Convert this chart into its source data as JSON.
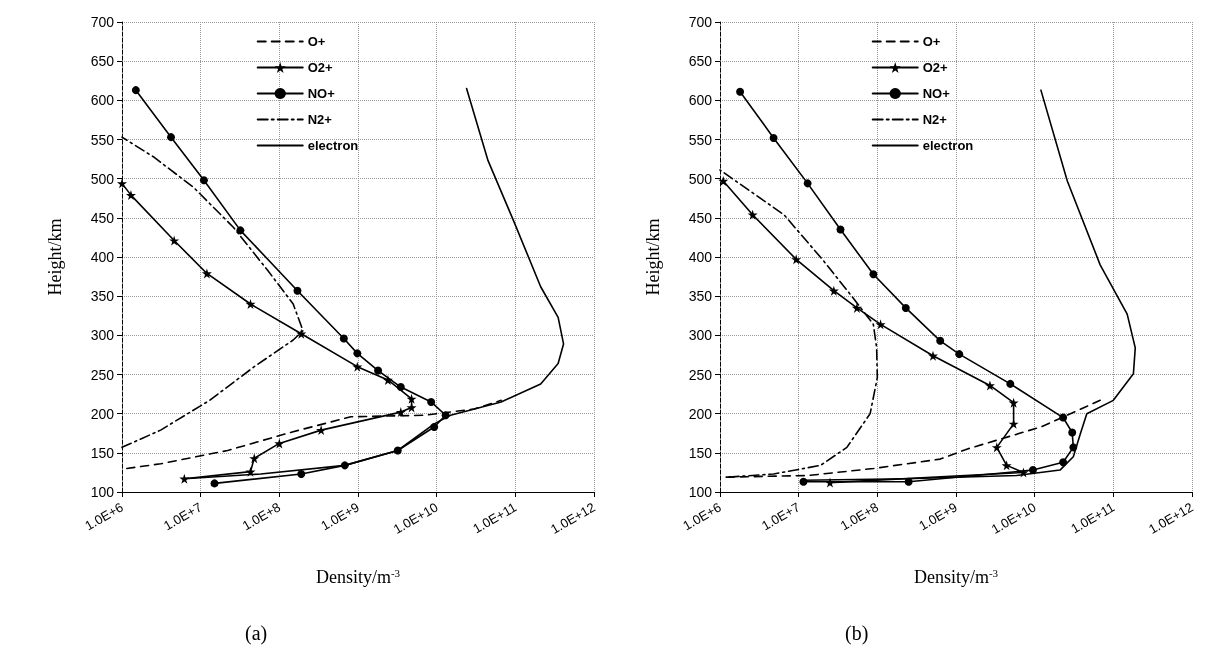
{
  "chart_data": [
    {
      "type": "line",
      "title": "(a)",
      "xlabel": "Density/m$^{-3}$",
      "ylabel": "Height/km",
      "log": "x",
      "grid": true,
      "legend": "top",
      "xlim": [
        1000000,
        1000000000000
      ],
      "xticks": [
        {
          "value": 1000000,
          "label": "1.0E+6"
        },
        {
          "value": 10000000,
          "label": "1.0E+7"
        },
        {
          "value": 100000000,
          "label": "1.0E+8"
        },
        {
          "value": 1000000000,
          "label": "1.0E+9"
        },
        {
          "value": 10000000000,
          "label": "1.0E+10"
        },
        {
          "value": 100000000000,
          "label": "1.0E+11"
        },
        {
          "value": 1000000000000,
          "label": "1.0E+12"
        }
      ],
      "ylim": [
        100,
        700
      ],
      "yticks": [
        100,
        150,
        200,
        250,
        300,
        350,
        400,
        450,
        500,
        550,
        600,
        650,
        700
      ],
      "series": [
        {
          "name": "O+",
          "color": "#000000",
          "line_style": "dashed",
          "marker": "none",
          "x": [
            1150000.0,
            3100000.0,
            22000000.0,
            150000000.0,
            810000000.0,
            7100000000.0,
            30000000000.0,
            66000000000.0
          ],
          "values": [
            130,
            136,
            153,
            177,
            196,
            198,
            206,
            217
          ]
        },
        {
          "name": "O2+",
          "color": "#000000",
          "line_style": "solid",
          "marker": "star",
          "x": [
            1000000.0,
            1300000.0,
            4600000.0,
            12000000.0,
            43000000.0,
            190000000.0,
            980000000.0,
            2400000000.0,
            4800000000.0,
            4800000000.0,
            3500000000.0,
            340000000.0,
            100000000.0,
            48000000.0,
            43000000.0,
            6200000.0
          ],
          "values": [
            494,
            479,
            421,
            379,
            340,
            302,
            260,
            243,
            219,
            208,
            202,
            179,
            162,
            143,
            126,
            117
          ]
        },
        {
          "name": "NO+",
          "color": "#000000",
          "line_style": "solid",
          "marker": "circle",
          "x": [
            1500000.0,
            4200000.0,
            11000000.0,
            32000000.0,
            170000000.0,
            660000000.0,
            980000000.0,
            1800000000.0,
            3500000000.0,
            8500000000.0,
            13000000000.0,
            9300000000.0,
            3200000000.0,
            680000000.0,
            190000000.0,
            15000000.0
          ],
          "values": [
            613,
            553,
            498,
            434,
            357,
            296,
            277,
            255,
            234,
            215,
            198,
            183,
            153,
            134,
            123,
            111
          ]
        },
        {
          "name": "N2+",
          "color": "#000000",
          "line_style": "dashdot",
          "marker": "none",
          "x": [
            1000000.0,
            3100000.0,
            13000000.0,
            48000000.0,
            150000000.0,
            200000000.0,
            150000000.0,
            71000000.0,
            26000000.0,
            8100000.0,
            2500000.0,
            1000000.0
          ],
          "values": [
            157,
            179,
            217,
            260,
            294,
            306,
            340,
            383,
            438,
            489,
            528,
            553
          ]
        },
        {
          "name": "electron",
          "color": "#000000",
          "line_style": "solid",
          "marker": "none",
          "x": [
            24000000000.0,
            45000000000.0,
            98000000000.0,
            210000000000.0,
            350000000000.0,
            410000000000.0,
            350000000000.0,
            210000000000.0,
            66000000000.0,
            15000000000.0,
            9300000000.0,
            3200000000.0,
            680000000.0,
            58000000.0,
            6200000.0
          ],
          "values": [
            615,
            523,
            443,
            362,
            323,
            289,
            264,
            238,
            215,
            198,
            187,
            153,
            134,
            123,
            117
          ]
        }
      ]
    },
    {
      "type": "line",
      "title": "(b)",
      "xlabel": "Density/m$^{-3}$",
      "ylabel": "Height/km",
      "log": "x",
      "grid": true,
      "legend": "top",
      "xlim": [
        1000000,
        1000000000000
      ],
      "xticks": [
        {
          "value": 1000000,
          "label": "1.0E+6"
        },
        {
          "value": 10000000,
          "label": "1.0E+7"
        },
        {
          "value": 100000000,
          "label": "1.0E+8"
        },
        {
          "value": 1000000000,
          "label": "1.0E+9"
        },
        {
          "value": 10000000000,
          "label": "1.0E+10"
        },
        {
          "value": 100000000000,
          "label": "1.0E+11"
        },
        {
          "value": 1000000000000,
          "label": "1.0E+12"
        }
      ],
      "ylim": [
        100,
        700
      ],
      "yticks": [
        100,
        150,
        200,
        250,
        300,
        350,
        400,
        450,
        500,
        550,
        600,
        650,
        700
      ],
      "series": [
        {
          "name": "O+",
          "color": "#000000",
          "line_style": "dashed",
          "marker": "none",
          "x": [
            1200000.0,
            13000000.0,
            89000000.0,
            630000000.0,
            1400000000.0,
            12000000000.0,
            68000000000.0
          ],
          "values": [
            119,
            121,
            130,
            142,
            155,
            183,
            217
          ]
        },
        {
          "name": "O2+",
          "color": "#000000",
          "line_style": "solid",
          "marker": "star",
          "x": [
            1100000.0,
            2600000.0,
            9300000.0,
            28000000.0,
            55000000.0,
            110000000.0,
            510000000.0,
            2700000000.0,
            5400000000.0,
            5400000000.0,
            3300000000.0,
            4400000000.0,
            7200000000.0,
            25000000.0
          ],
          "values": [
            497,
            454,
            397,
            357,
            335,
            314,
            274,
            236,
            214,
            187,
            157,
            134,
            125,
            112
          ]
        },
        {
          "name": "NO+",
          "color": "#000000",
          "line_style": "solid",
          "marker": "circle",
          "x": [
            1800000.0,
            4800000.0,
            13000000.0,
            34000000.0,
            89000000.0,
            230000000.0,
            630000000.0,
            1100000000.0,
            4900000000.0,
            23000000000.0,
            30000000000.0,
            31000000000.0,
            23000000000.0,
            9500000000.0,
            250000000.0,
            11500000.0
          ],
          "values": [
            611,
            552,
            494,
            435,
            378,
            335,
            293,
            276,
            238,
            195,
            176,
            157,
            138,
            128,
            113,
            113
          ]
        },
        {
          "name": "N2+",
          "color": "#000000",
          "line_style": "dashdot",
          "marker": "none",
          "x": [
            1300000.0,
            4800000.0,
            19000000.0,
            41000000.0,
            81000000.0,
            100000000.0,
            98000000.0,
            89000000.0,
            49000000.0,
            20000000.0,
            6500000.0,
            1000000.0
          ],
          "values": [
            119,
            123,
            134,
            157,
            200,
            246,
            284,
            314,
            348,
            397,
            454,
            511
          ]
        },
        {
          "name": "electron",
          "color": "#000000",
          "line_style": "solid",
          "marker": "none",
          "x": [
            12000000000.0,
            26000000000.0,
            68000000000.0,
            150000000000.0,
            190000000000.0,
            180000000000.0,
            100000000000.0,
            46000000000.0,
            38000000000.0,
            31000000000.0,
            21000000000.0,
            5900000000.0,
            230000000.0,
            11500000.0
          ],
          "values": [
            613,
            497,
            390,
            327,
            284,
            251,
            217,
            200,
            174,
            145,
            128,
            121,
            117,
            115
          ]
        }
      ]
    }
  ]
}
